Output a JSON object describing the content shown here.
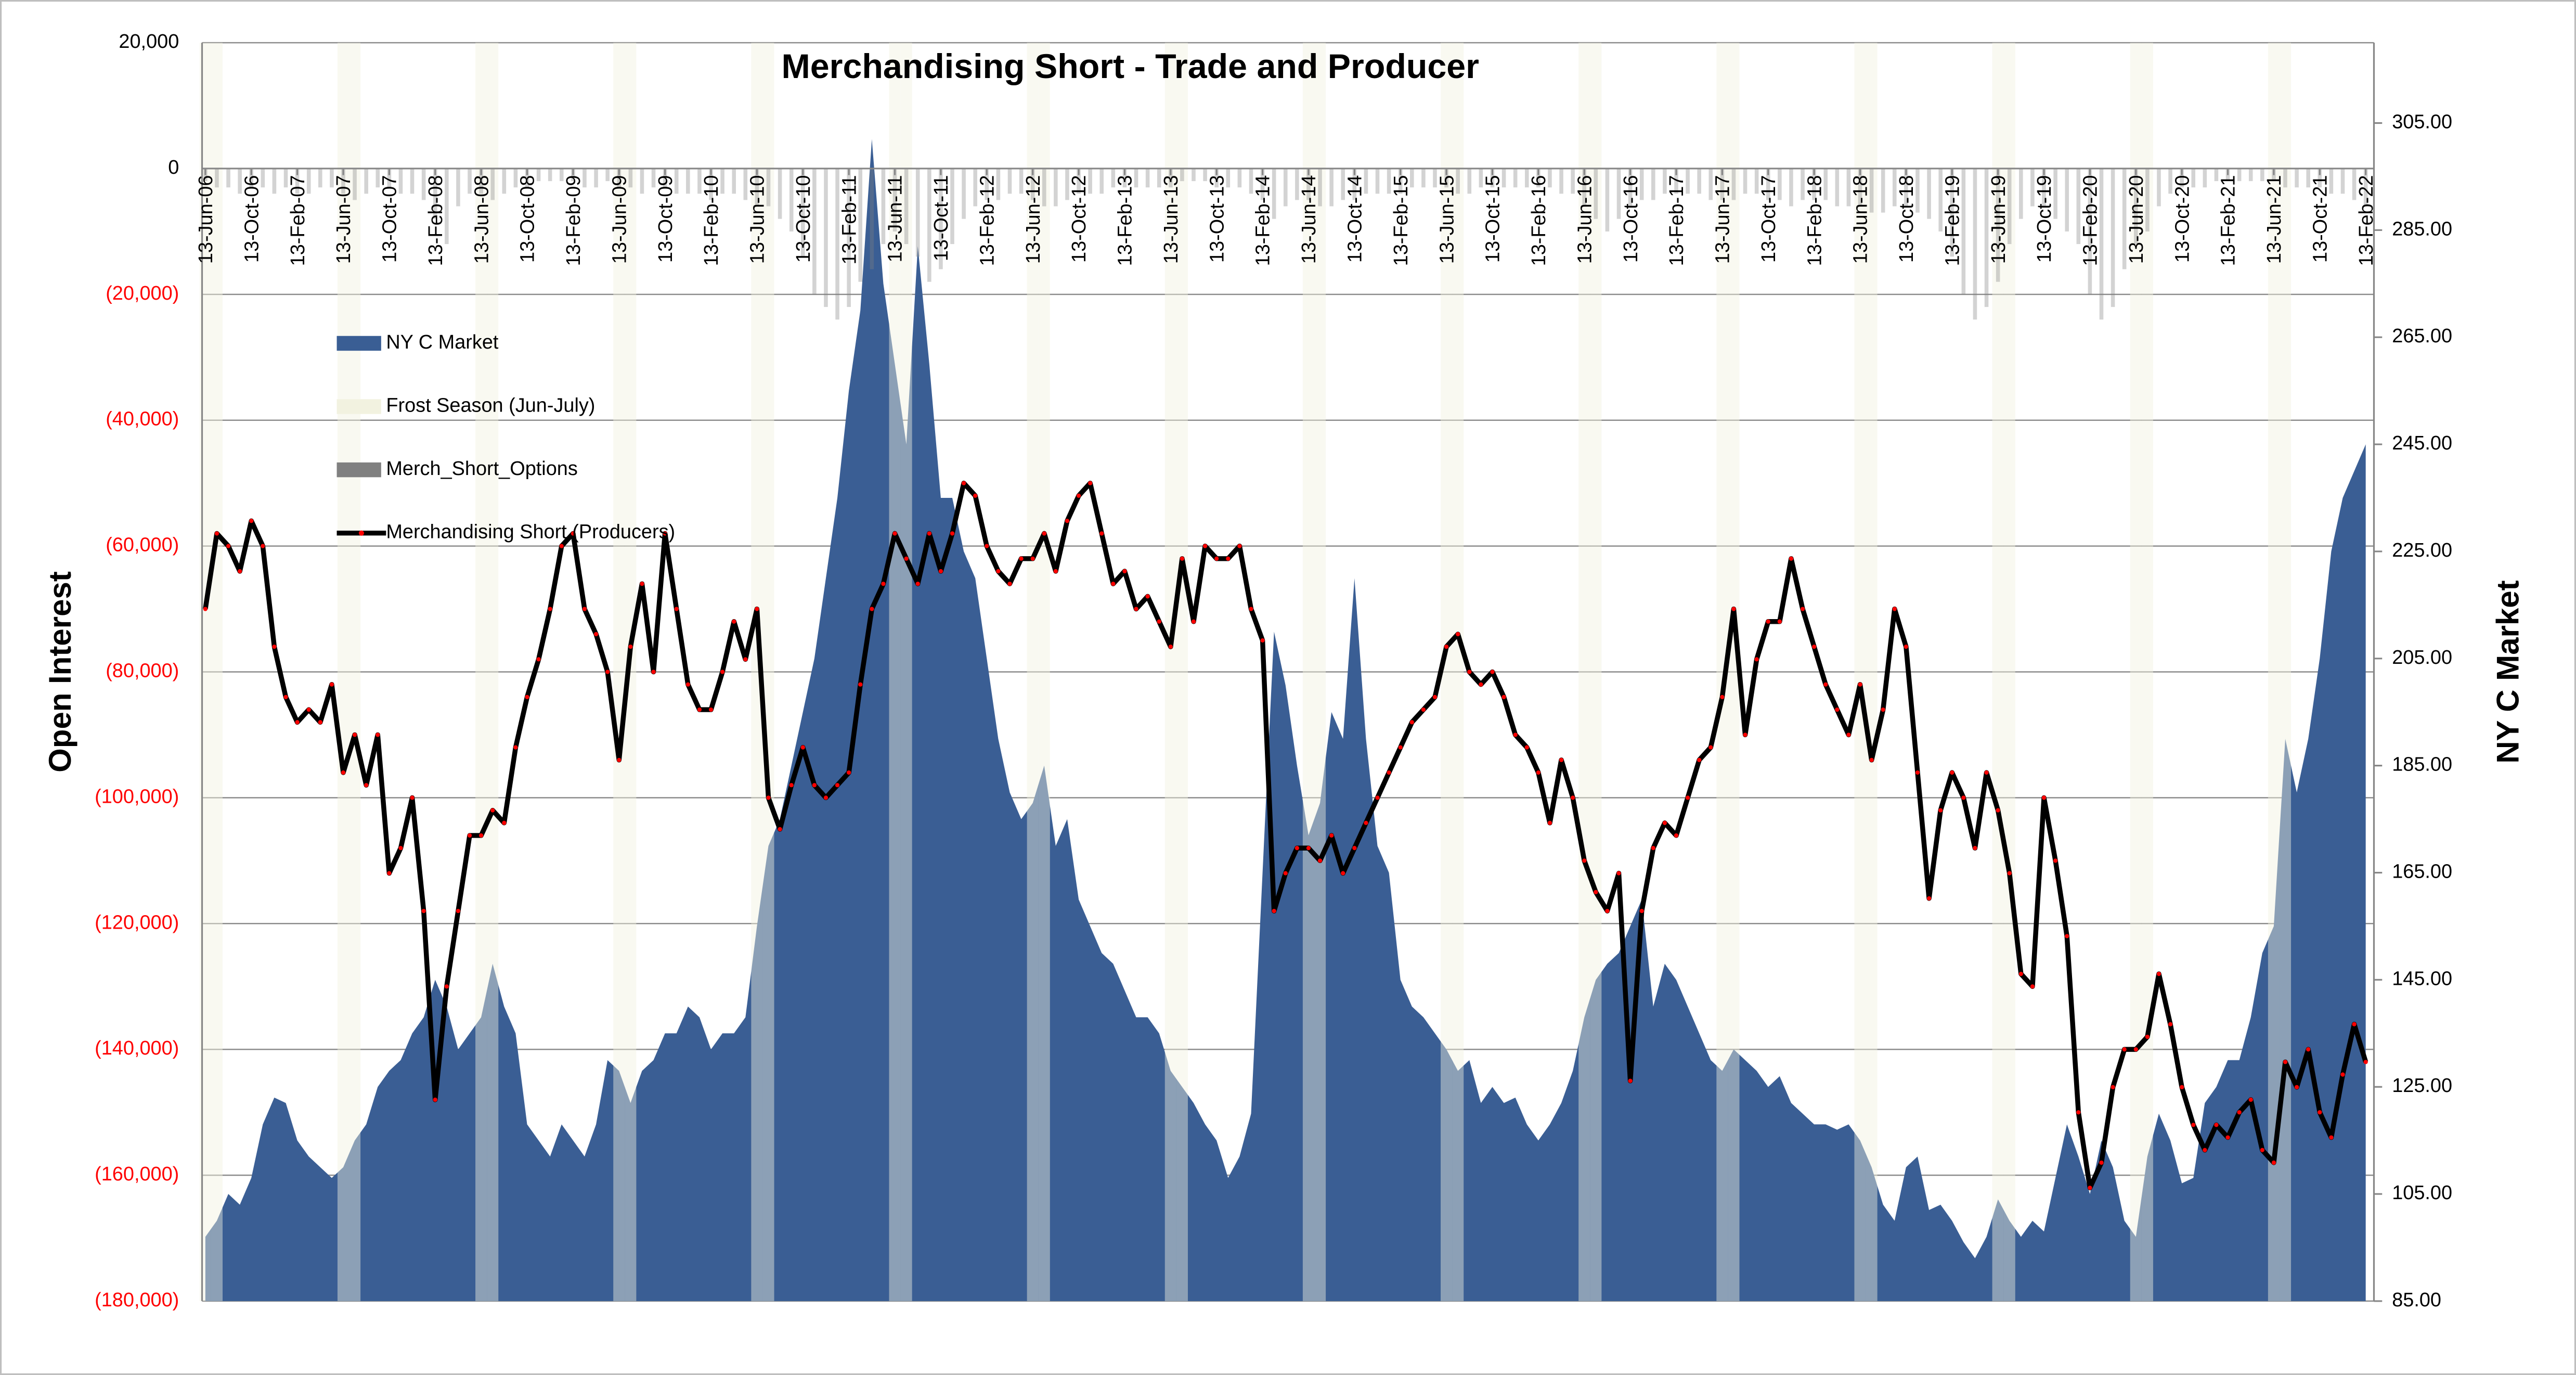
{
  "chart_data": {
    "type": "combo",
    "title": "Merchandising Short - Trade and Producer",
    "y_label": "Open Interest",
    "y2_label": "NY C Market",
    "legend": "upper left",
    "grid": true,
    "ytick_negative_color": "#ff0000",
    "ylim": [
      -180000,
      20000
    ],
    "yticks": [
      {
        "value": -180000,
        "label": "(180,000)"
      },
      {
        "value": -160000,
        "label": "(160,000)"
      },
      {
        "value": -140000,
        "label": "(140,000)"
      },
      {
        "value": -120000,
        "label": "(120,000)"
      },
      {
        "value": -100000,
        "label": "(100,000)"
      },
      {
        "value": -80000,
        "label": "(80,000)"
      },
      {
        "value": -60000,
        "label": "(60,000)"
      },
      {
        "value": -40000,
        "label": "(40,000)"
      },
      {
        "value": -20000,
        "label": "(20,000)"
      },
      0,
      {
        "value": 20000,
        "label": "20,000"
      }
    ],
    "y2lim": [
      85,
      320
    ],
    "y2ticks": [
      {
        "value": 85,
        "label": "85.00"
      },
      {
        "value": 105,
        "label": "105.00"
      },
      {
        "value": 125,
        "label": "125.00"
      },
      {
        "value": 145,
        "label": "145.00"
      },
      {
        "value": 165,
        "label": "165.00"
      },
      {
        "value": 185,
        "label": "185.00"
      },
      {
        "value": 205,
        "label": "205.00"
      },
      {
        "value": 225,
        "label": "225.00"
      },
      {
        "value": 245,
        "label": "245.00"
      },
      {
        "value": 265,
        "label": "265.00"
      },
      {
        "value": 285,
        "label": "285.00"
      },
      {
        "value": 305,
        "label": "305.00"
      }
    ],
    "categories": [
      "13-Jun-06",
      null,
      null,
      null,
      "13-Oct-06",
      null,
      null,
      null,
      "13-Feb-07",
      null,
      null,
      null,
      "13-Jun-07",
      null,
      null,
      null,
      "13-Oct-07",
      null,
      null,
      null,
      "13-Feb-08",
      null,
      null,
      null,
      "13-Jun-08",
      null,
      null,
      null,
      "13-Oct-08",
      null,
      null,
      null,
      "13-Feb-09",
      null,
      null,
      null,
      "13-Jun-09",
      null,
      null,
      null,
      "13-Oct-09",
      null,
      null,
      null,
      "13-Feb-10",
      null,
      null,
      null,
      "13-Jun-10",
      null,
      null,
      null,
      "13-Oct-10",
      null,
      null,
      null,
      "13-Feb-11",
      null,
      null,
      null,
      "13-Jun-11",
      null,
      null,
      null,
      "13-Oct-11",
      null,
      null,
      null,
      "13-Feb-12",
      null,
      null,
      null,
      "13-Jun-12",
      null,
      null,
      null,
      "13-Oct-12",
      null,
      null,
      null,
      "13-Feb-13",
      null,
      null,
      null,
      "13-Jun-13",
      null,
      null,
      null,
      "13-Oct-13",
      null,
      null,
      null,
      "13-Feb-14",
      null,
      null,
      null,
      "13-Jun-14",
      null,
      null,
      null,
      "13-Oct-14",
      null,
      null,
      null,
      "13-Feb-15",
      null,
      null,
      null,
      "13-Jun-15",
      null,
      null,
      null,
      "13-Oct-15",
      null,
      null,
      null,
      "13-Feb-16",
      null,
      null,
      null,
      "13-Jun-16",
      null,
      null,
      null,
      "13-Oct-16",
      null,
      null,
      null,
      "13-Feb-17",
      null,
      null,
      null,
      "13-Jun-17",
      null,
      null,
      null,
      "13-Oct-17",
      null,
      null,
      null,
      "13-Feb-18",
      null,
      null,
      null,
      "13-Jun-18",
      null,
      null,
      null,
      "13-Oct-18",
      null,
      null,
      null,
      "13-Feb-19",
      null,
      null,
      null,
      "13-Jun-19",
      null,
      null,
      null,
      "13-Oct-19",
      null,
      null,
      null,
      "13-Feb-20",
      null,
      null,
      null,
      "13-Jun-20",
      null,
      null,
      null,
      "13-Oct-20",
      null,
      null,
      null,
      "13-Feb-21",
      null,
      null,
      null,
      "13-Jun-21",
      null,
      null,
      null,
      "13-Oct-21",
      null,
      null,
      null,
      "13-Feb-22"
    ],
    "series": [
      {
        "name": "NY C Market",
        "type": "area",
        "axis": "y2",
        "color": "#3a5e94",
        "values": [
          97,
          100,
          105,
          103,
          108,
          118,
          123,
          122,
          115,
          112,
          110,
          108,
          110,
          115,
          118,
          125,
          128,
          130,
          135,
          138,
          145,
          140,
          132,
          135,
          138,
          148,
          140,
          135,
          118,
          115,
          112,
          118,
          115,
          112,
          118,
          130,
          128,
          122,
          128,
          130,
          135,
          135,
          140,
          138,
          132,
          135,
          135,
          138,
          155,
          170,
          175,
          185,
          195,
          205,
          220,
          235,
          255,
          270,
          302,
          275,
          260,
          245,
          282,
          260,
          235,
          235,
          225,
          220,
          205,
          190,
          180,
          175,
          178,
          185,
          170,
          175,
          160,
          155,
          150,
          148,
          143,
          138,
          138,
          135,
          128,
          125,
          122,
          118,
          115,
          108,
          112,
          120,
          165,
          210,
          200,
          185,
          172,
          178,
          195,
          190,
          220,
          190,
          170,
          165,
          145,
          140,
          138,
          135,
          132,
          128,
          130,
          122,
          125,
          122,
          123,
          118,
          115,
          118,
          122,
          128,
          138,
          145,
          148,
          150,
          155,
          160,
          140,
          148,
          145,
          140,
          135,
          130,
          128,
          132,
          130,
          128,
          125,
          127,
          122,
          120,
          118,
          118,
          117,
          118,
          115,
          110,
          103,
          100,
          110,
          112,
          102,
          103,
          100,
          96,
          93,
          97,
          104,
          100,
          97,
          100,
          98,
          108,
          118,
          112,
          105,
          115,
          110,
          100,
          97,
          112,
          120,
          115,
          107,
          108,
          122,
          125,
          130,
          130,
          138,
          150,
          155,
          190,
          180,
          190,
          205,
          225,
          235,
          240,
          245
        ]
      },
      {
        "name": "Frost Season (Jun-July)",
        "type": "band",
        "color": "#f2f2e0",
        "values": [
          20000,
          20000,
          null,
          null,
          null,
          null,
          null,
          null,
          null,
          null,
          null,
          null,
          20000,
          20000,
          null,
          null,
          null,
          null,
          null,
          null,
          null,
          null,
          null,
          null,
          20000,
          20000,
          null,
          null,
          null,
          null,
          null,
          null,
          null,
          null,
          null,
          null,
          20000,
          20000,
          null,
          null,
          null,
          null,
          null,
          null,
          null,
          null,
          null,
          null,
          20000,
          20000,
          null,
          null,
          null,
          null,
          null,
          null,
          null,
          null,
          null,
          null,
          20000,
          20000,
          null,
          null,
          null,
          null,
          null,
          null,
          null,
          null,
          null,
          null,
          20000,
          20000,
          null,
          null,
          null,
          null,
          null,
          null,
          null,
          null,
          null,
          null,
          20000,
          20000,
          null,
          null,
          null,
          null,
          null,
          null,
          null,
          null,
          null,
          null,
          20000,
          20000,
          null,
          null,
          null,
          null,
          null,
          null,
          null,
          null,
          null,
          null,
          20000,
          20000,
          null,
          null,
          null,
          null,
          null,
          null,
          null,
          null,
          null,
          null,
          20000,
          20000,
          null,
          null,
          null,
          null,
          null,
          null,
          null,
          null,
          null,
          null,
          20000,
          20000,
          null,
          null,
          null,
          null,
          null,
          null,
          null,
          null,
          null,
          null,
          20000,
          20000,
          null,
          null,
          null,
          null,
          null,
          null,
          null,
          null,
          null,
          null,
          20000,
          20000,
          null,
          null,
          null,
          null,
          null,
          null,
          null,
          null,
          null,
          null,
          20000,
          20000,
          null,
          null,
          null,
          null,
          null,
          null,
          null,
          null,
          null,
          null,
          20000,
          20000,
          null,
          null,
          null,
          null,
          null,
          null,
          null
        ]
      },
      {
        "name": "Merch_Short_Options",
        "type": "bar",
        "color": "#808080",
        "values": [
          -2000,
          -3000,
          -3000,
          -4000,
          -3000,
          -3000,
          -4000,
          -3000,
          -4000,
          -4000,
          -3000,
          -3000,
          -4000,
          -5000,
          -4000,
          -3000,
          -3000,
          -4000,
          -4000,
          -5000,
          -8000,
          -12000,
          -6000,
          -4000,
          -4000,
          -5000,
          -4000,
          -3000,
          -3000,
          -2000,
          -2000,
          -2000,
          -2000,
          -3000,
          -3000,
          -2000,
          -3000,
          -3000,
          -4000,
          -3000,
          -3000,
          -4000,
          -4000,
          -4000,
          -5000,
          -4000,
          -4000,
          -5000,
          -6000,
          -6000,
          -8000,
          -10000,
          -14000,
          -20000,
          -22000,
          -24000,
          -22000,
          -18000,
          -16000,
          -12000,
          -10000,
          -12000,
          -14000,
          -18000,
          -16000,
          -12000,
          -8000,
          -6000,
          -5000,
          -5000,
          -4000,
          -4000,
          -5000,
          -6000,
          -6000,
          -5000,
          -4000,
          -4000,
          -4000,
          -3000,
          -3000,
          -3000,
          -3000,
          -3000,
          -3000,
          -2000,
          -2000,
          -2000,
          -3000,
          -3000,
          -3000,
          -4000,
          -5000,
          -8000,
          -6000,
          -5000,
          -5000,
          -6000,
          -6000,
          -5000,
          -5000,
          -4000,
          -4000,
          -4000,
          -4000,
          -3000,
          -3000,
          -3000,
          -3000,
          -4000,
          -4000,
          -3000,
          -3000,
          -3000,
          -3000,
          -3000,
          -3000,
          -3000,
          -4000,
          -4000,
          -6000,
          -8000,
          -10000,
          -8000,
          -6000,
          -5000,
          -5000,
          -4000,
          -4000,
          -4000,
          -4000,
          -5000,
          -5000,
          -5000,
          -4000,
          -4000,
          -5000,
          -5000,
          -6000,
          -5000,
          -5000,
          -5000,
          -6000,
          -6000,
          -6000,
          -7000,
          -7000,
          -6000,
          -6000,
          -7000,
          -8000,
          -10000,
          -14000,
          -20000,
          -24000,
          -22000,
          -18000,
          -12000,
          -8000,
          -6000,
          -6000,
          -8000,
          -10000,
          -12000,
          -20000,
          -24000,
          -22000,
          -16000,
          -12000,
          -10000,
          -6000,
          -4000,
          -3000,
          -3000,
          -3000,
          -2000,
          -2000,
          -2000,
          -2000,
          -2000,
          -2000,
          -3000,
          -3000,
          -3000,
          -3000,
          -4000,
          -4000,
          -5000,
          -6000
        ]
      },
      {
        "name": "Merchandising Short (Producers)",
        "type": "line",
        "color": "#000000",
        "marker_color": "#ff0000",
        "values": [
          -70000,
          -58000,
          -60000,
          -64000,
          -56000,
          -60000,
          -76000,
          -84000,
          -88000,
          -86000,
          -88000,
          -82000,
          -96000,
          -90000,
          -98000,
          -90000,
          -112000,
          -108000,
          -100000,
          -118000,
          -148000,
          -130000,
          -118000,
          -106000,
          -106000,
          -102000,
          -104000,
          -92000,
          -84000,
          -78000,
          -70000,
          -60000,
          -58000,
          -70000,
          -74000,
          -80000,
          -94000,
          -76000,
          -66000,
          -80000,
          -58000,
          -70000,
          -82000,
          -86000,
          -86000,
          -80000,
          -72000,
          -78000,
          -70000,
          -100000,
          -105000,
          -98000,
          -92000,
          -98000,
          -100000,
          -98000,
          -96000,
          -82000,
          -70000,
          -66000,
          -58000,
          -62000,
          -66000,
          -58000,
          -64000,
          -58000,
          -50000,
          -52000,
          -60000,
          -64000,
          -66000,
          -62000,
          -62000,
          -58000,
          -64000,
          -56000,
          -52000,
          -50000,
          -58000,
          -66000,
          -64000,
          -70000,
          -68000,
          -72000,
          -76000,
          -62000,
          -72000,
          -60000,
          -62000,
          -62000,
          -60000,
          -70000,
          -75000,
          -118000,
          -112000,
          -108000,
          -108000,
          -110000,
          -106000,
          -112000,
          -108000,
          -104000,
          -100000,
          -96000,
          -92000,
          -88000,
          -86000,
          -84000,
          -76000,
          -74000,
          -80000,
          -82000,
          -80000,
          -84000,
          -90000,
          -92000,
          -96000,
          -104000,
          -94000,
          -100000,
          -110000,
          -115000,
          -118000,
          -112000,
          -145000,
          -118000,
          -108000,
          -104000,
          -106000,
          -100000,
          -94000,
          -92000,
          -84000,
          -70000,
          -90000,
          -78000,
          -72000,
          -72000,
          -62000,
          -70000,
          -76000,
          -82000,
          -86000,
          -90000,
          -82000,
          -94000,
          -86000,
          -70000,
          -76000,
          -96000,
          -116000,
          -102000,
          -96000,
          -100000,
          -108000,
          -96000,
          -102000,
          -112000,
          -128000,
          -130000,
          -100000,
          -110000,
          -122000,
          -150000,
          -162000,
          -158000,
          -146000,
          -140000,
          -140000,
          -138000,
          -128000,
          -136000,
          -146000,
          -152000,
          -156000,
          -152000,
          -154000,
          -150000,
          -148000,
          -156000,
          -158000,
          -142000,
          -146000,
          -140000,
          -150000,
          -154000,
          -144000,
          -136000,
          -142000
        ]
      }
    ]
  }
}
